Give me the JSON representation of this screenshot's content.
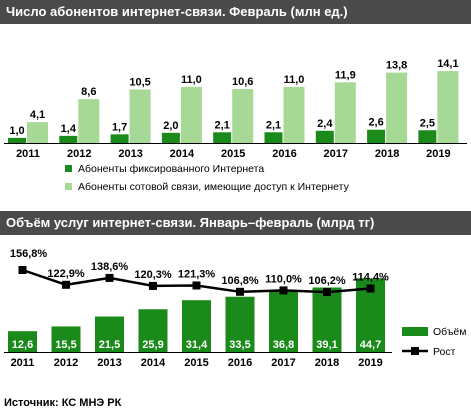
{
  "source_text": "Источник:  КС МНЭ РК",
  "chart_data": [
    {
      "type": "bar",
      "title": "Число абонентов интернет-связи. Февраль (млн ед.)",
      "categories": [
        "2011",
        "2012",
        "2013",
        "2014",
        "2015",
        "2016",
        "2017",
        "2018",
        "2019"
      ],
      "series": [
        {
          "name": "Абоненты фиксированного Интернета",
          "values": [
            1.0,
            1.4,
            1.7,
            2.0,
            2.1,
            2.1,
            2.4,
            2.6,
            2.5
          ],
          "labels": [
            "1,0",
            "1,4",
            "1,7",
            "2,0",
            "2,1",
            "2,1",
            "2,4",
            "2,6",
            "2,5"
          ],
          "color": "#1a8a1a"
        },
        {
          "name": "Абоненты сотовой связи, имеющие доступ к Интернету",
          "values": [
            4.1,
            8.6,
            10.5,
            11.0,
            10.6,
            11.0,
            11.9,
            13.8,
            14.1
          ],
          "labels": [
            "4,1",
            "8,6",
            "10,5",
            "11,0",
            "10,6",
            "11,0",
            "11,9",
            "13,8",
            "14,1"
          ],
          "color": "#a6d896"
        }
      ],
      "ylim": [
        0,
        15
      ],
      "grid": false,
      "legend": "bottom"
    },
    {
      "type": "bar",
      "title": "Объём услуг интернет-связи. Январь–февраль (млрд тг)",
      "categories": [
        "2011",
        "2012",
        "2013",
        "2014",
        "2015",
        "2016",
        "2017",
        "2018",
        "2019"
      ],
      "series": [
        {
          "name": "Объём",
          "kind": "bar",
          "values": [
            12.6,
            15.5,
            21.5,
            25.9,
            31.4,
            33.5,
            36.8,
            39.1,
            44.7
          ],
          "labels": [
            "12,6",
            "15,5",
            "21,5",
            "25,9",
            "31,4",
            "33,5",
            "36,8",
            "39,1",
            "44,7"
          ],
          "color": "#1a8a1a"
        },
        {
          "name": "Рост",
          "kind": "line",
          "values": [
            156.8,
            122.9,
            138.6,
            120.3,
            121.3,
            106.8,
            110.0,
            106.2,
            114.4
          ],
          "labels": [
            "156,8%",
            "122,9%",
            "138,6%",
            "120,3%",
            "121,3%",
            "106,8%",
            "110,0%",
            "106,2%",
            "114,4%"
          ],
          "color": "#000000"
        }
      ],
      "ylim": [
        0,
        46
      ],
      "grid": false,
      "legend": "right"
    }
  ]
}
